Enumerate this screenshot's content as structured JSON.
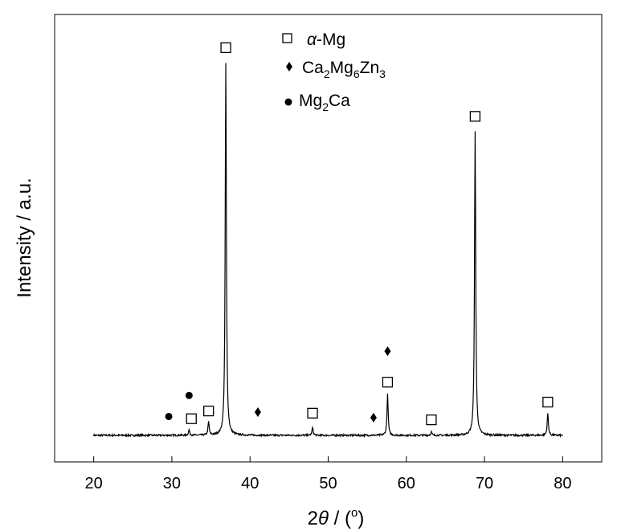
{
  "chart_data": {
    "type": "line",
    "title": "",
    "xlabel_prefix": "2",
    "xlabel_symbol": "θ",
    "xlabel_suffix": " / (",
    "xlabel_degree": "o",
    "xlabel_close": ")",
    "ylabel": "Intensity / a.u.",
    "xlim": [
      15,
      85
    ],
    "ylim": [
      -12,
      190
    ],
    "xticks": [
      20,
      30,
      40,
      50,
      60,
      70,
      80
    ],
    "grid": false,
    "legend_position": "top-center",
    "legend": [
      {
        "marker": "square",
        "prefix": "α",
        "text": "-Mg"
      },
      {
        "marker": "diamond",
        "formula": [
          {
            "t": "Ca",
            "s": "2"
          },
          {
            "t": "Mg",
            "s": "6"
          },
          {
            "t": "Zn",
            "s": "3"
          }
        ]
      },
      {
        "marker": "circle",
        "formula": [
          {
            "t": "Mg",
            "s": "2"
          },
          {
            "t": "Ca",
            "s": ""
          }
        ]
      }
    ],
    "series": [
      {
        "baseline": 0,
        "x_range": [
          20,
          80
        ],
        "peaks": [
          {
            "x": 32.2,
            "h": 2.5
          },
          {
            "x": 34.7,
            "h": 6
          },
          {
            "x": 36.9,
            "h": 168
          },
          {
            "x": 48.0,
            "h": 3.5
          },
          {
            "x": 57.6,
            "h": 18.5
          },
          {
            "x": 63.2,
            "h": 1.5
          },
          {
            "x": 68.8,
            "h": 137
          },
          {
            "x": 78.1,
            "h": 10
          }
        ]
      }
    ],
    "annotations": [
      {
        "marker": "circle",
        "x": 29.6,
        "y": 8.5
      },
      {
        "marker": "square",
        "x": 32.5,
        "y": 7.5
      },
      {
        "marker": "circle",
        "x": 32.2,
        "y": 18
      },
      {
        "marker": "square",
        "x": 34.7,
        "y": 11
      },
      {
        "marker": "square",
        "x": 36.9,
        "y": 175
      },
      {
        "marker": "diamond",
        "x": 41.0,
        "y": 10.5
      },
      {
        "marker": "square",
        "x": 48.0,
        "y": 10
      },
      {
        "marker": "diamond",
        "x": 55.8,
        "y": 8
      },
      {
        "marker": "square",
        "x": 57.6,
        "y": 24
      },
      {
        "marker": "diamond",
        "x": 57.6,
        "y": 38
      },
      {
        "marker": "square",
        "x": 63.2,
        "y": 7
      },
      {
        "marker": "square",
        "x": 68.8,
        "y": 144
      },
      {
        "marker": "square",
        "x": 78.1,
        "y": 15
      }
    ],
    "colors": {
      "line": "#000000",
      "frame": "#000000"
    }
  }
}
